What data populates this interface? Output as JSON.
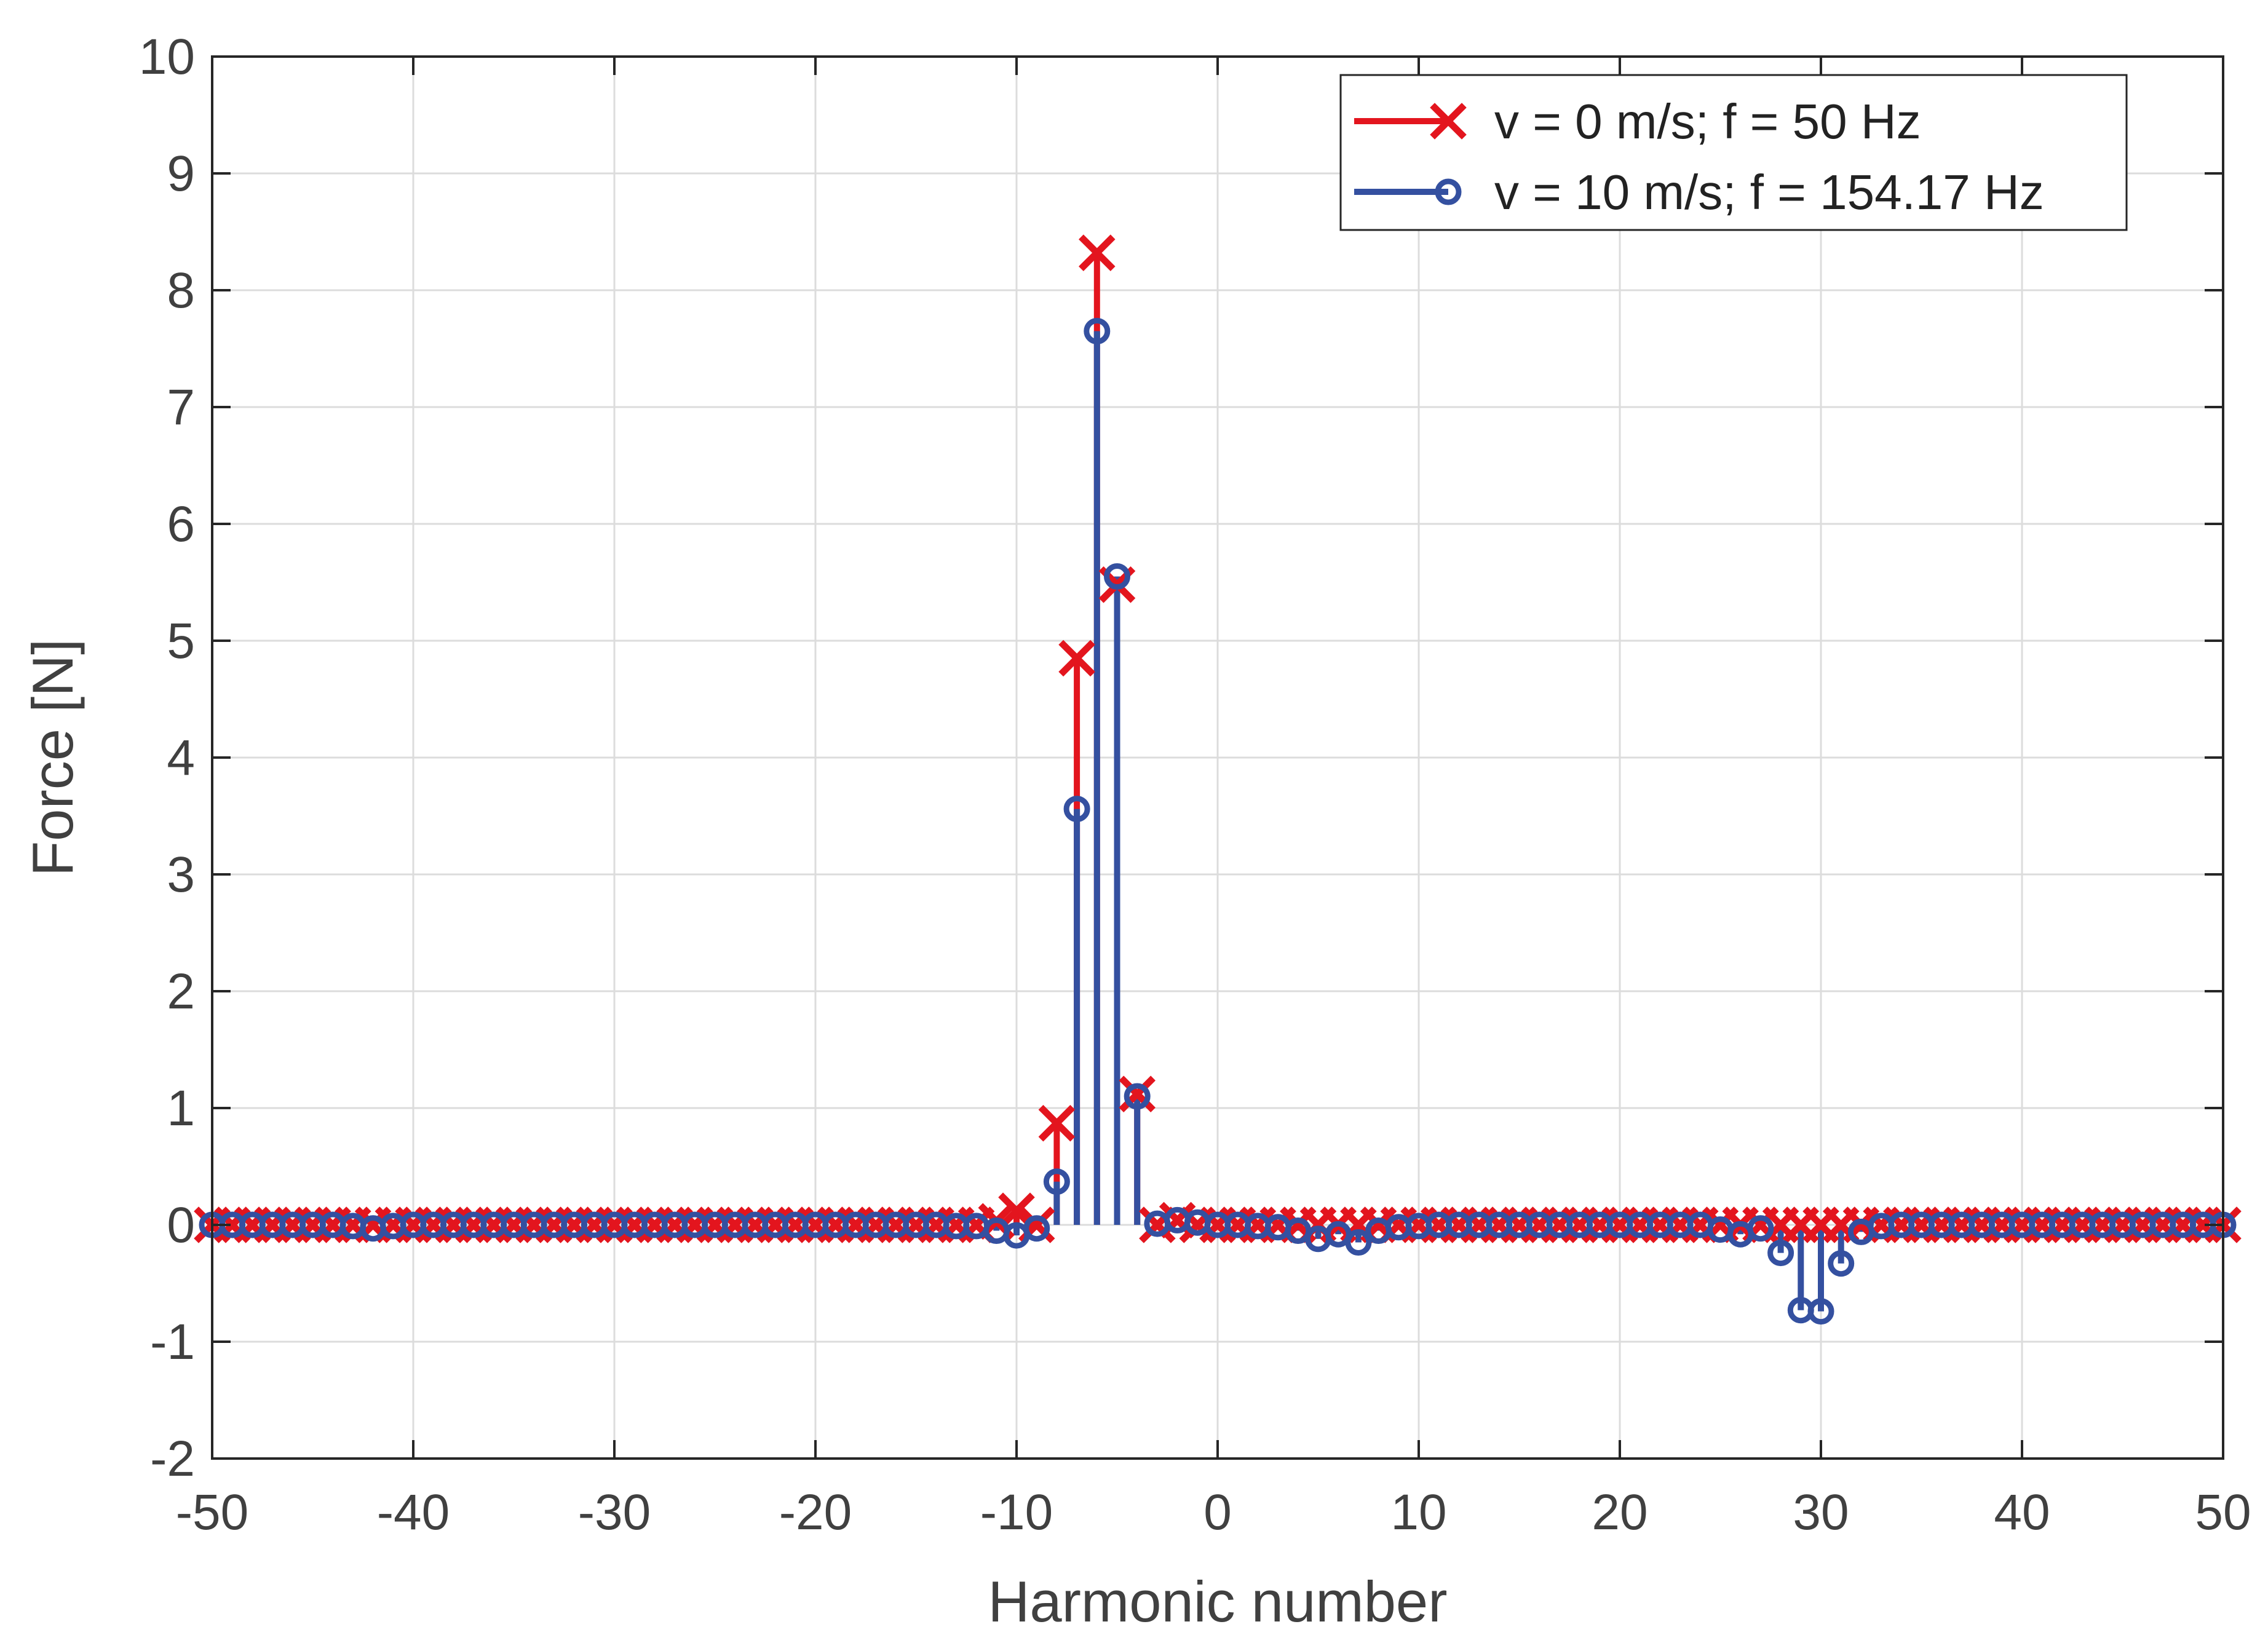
{
  "chart_data": {
    "type": "stem",
    "title": "",
    "xlabel": "Harmonic number",
    "ylabel": "Force [N]",
    "xlim": [
      -50,
      50
    ],
    "ylim": [
      -2,
      10
    ],
    "xticks": [
      -50,
      -40,
      -30,
      -20,
      -10,
      0,
      10,
      20,
      30,
      40,
      50
    ],
    "yticks": [
      -2,
      -1,
      0,
      1,
      2,
      3,
      4,
      5,
      6,
      7,
      8,
      9,
      10
    ],
    "grid": true,
    "legend_position": "top-right",
    "series": [
      {
        "name": "v = 0 m/s; f = 50 Hz",
        "color": "#e3151e",
        "marker": "x",
        "x": [
          -50,
          -49,
          -48,
          -47,
          -46,
          -45,
          -44,
          -43,
          -42,
          -41,
          -40,
          -39,
          -38,
          -37,
          -36,
          -35,
          -34,
          -33,
          -32,
          -31,
          -30,
          -29,
          -28,
          -27,
          -26,
          -25,
          -24,
          -23,
          -22,
          -21,
          -20,
          -19,
          -18,
          -17,
          -16,
          -15,
          -14,
          -13,
          -12,
          -11,
          -10,
          -9,
          -8,
          -7,
          -6,
          -5,
          -4,
          -3,
          -2,
          -1,
          0,
          1,
          2,
          3,
          4,
          5,
          6,
          7,
          8,
          9,
          10,
          11,
          12,
          13,
          14,
          15,
          16,
          17,
          18,
          19,
          20,
          21,
          22,
          23,
          24,
          25,
          26,
          27,
          28,
          29,
          30,
          31,
          32,
          33,
          34,
          35,
          36,
          37,
          38,
          39,
          40,
          41,
          42,
          43,
          44,
          45,
          46,
          47,
          48,
          49,
          50
        ],
        "y": [
          0,
          0,
          0,
          0,
          0,
          0,
          0,
          0,
          0,
          0,
          0,
          0,
          0,
          0,
          0,
          0,
          0,
          0,
          0,
          0,
          0,
          0,
          0,
          0,
          0,
          0,
          0,
          0,
          0,
          0,
          0,
          0,
          0,
          0,
          0,
          0,
          0,
          0,
          0,
          0.03,
          0.12,
          0,
          0.87,
          4.85,
          8.32,
          5.48,
          1.12,
          0,
          0.04,
          0,
          0,
          0,
          0,
          0,
          0,
          0,
          0,
          0,
          0,
          0,
          0,
          0,
          0,
          0,
          0,
          0,
          0,
          0,
          0,
          0,
          0,
          0,
          0,
          0,
          0,
          0,
          0,
          0,
          0,
          0,
          0,
          0,
          0,
          0,
          0,
          0,
          0,
          0,
          0,
          0,
          0,
          0,
          0,
          0,
          0,
          0,
          0,
          0,
          0,
          0,
          0
        ]
      },
      {
        "name": "v = 10 m/s; f = 154.17 Hz",
        "color": "#3450a0",
        "marker": "o",
        "x": [
          -50,
          -49,
          -48,
          -47,
          -46,
          -45,
          -44,
          -43,
          -42,
          -41,
          -40,
          -39,
          -38,
          -37,
          -36,
          -35,
          -34,
          -33,
          -32,
          -31,
          -30,
          -29,
          -28,
          -27,
          -26,
          -25,
          -24,
          -23,
          -22,
          -21,
          -20,
          -19,
          -18,
          -17,
          -16,
          -15,
          -14,
          -13,
          -12,
          -11,
          -10,
          -9,
          -8,
          -7,
          -6,
          -5,
          -4,
          -3,
          -2,
          -1,
          0,
          1,
          2,
          3,
          4,
          5,
          6,
          7,
          8,
          9,
          10,
          11,
          12,
          13,
          14,
          15,
          16,
          17,
          18,
          19,
          20,
          21,
          22,
          23,
          24,
          25,
          26,
          27,
          28,
          29,
          30,
          31,
          32,
          33,
          34,
          35,
          36,
          37,
          38,
          39,
          40,
          41,
          42,
          43,
          44,
          45,
          46,
          47,
          48,
          49,
          50
        ],
        "y": [
          0,
          0,
          0,
          0,
          0,
          0,
          0,
          -0.01,
          -0.03,
          -0.01,
          0,
          0,
          0,
          0,
          0,
          0,
          0,
          0,
          0,
          0,
          0,
          0,
          0,
          0,
          0,
          0,
          0,
          0,
          0,
          0,
          0,
          0,
          0,
          0,
          0,
          0,
          0,
          -0.01,
          -0.01,
          -0.05,
          -0.09,
          -0.03,
          0.37,
          3.56,
          7.65,
          5.55,
          1.1,
          0.01,
          0.04,
          0.02,
          0,
          0,
          -0.01,
          -0.02,
          -0.05,
          -0.12,
          -0.08,
          -0.15,
          -0.05,
          -0.02,
          -0.01,
          0,
          0,
          0,
          0,
          0,
          0,
          0,
          0,
          0,
          0,
          0,
          0,
          0,
          0,
          -0.04,
          -0.08,
          -0.03,
          -0.24,
          -0.73,
          -0.74,
          -0.33,
          -0.06,
          -0.01,
          0,
          0,
          0,
          0,
          0,
          0,
          0,
          0,
          0,
          0,
          0,
          0,
          0,
          0,
          0,
          0,
          0
        ]
      }
    ]
  }
}
